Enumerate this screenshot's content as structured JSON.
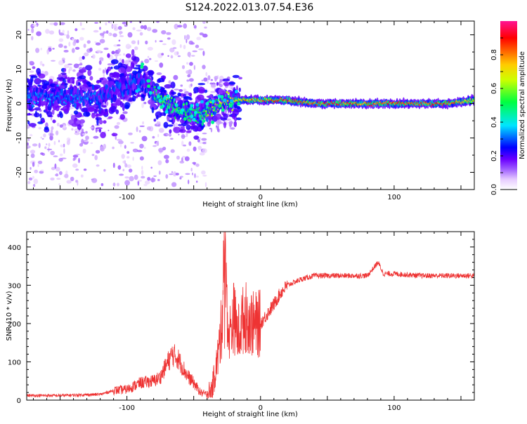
{
  "figure": {
    "title": "S124.2022.013.07.54.E36"
  },
  "chart_data": [
    {
      "type": "heatmap",
      "title": "S124.2022.013.07.54.E36",
      "xlabel": "Height of straight line (km)",
      "ylabel": "Frequency (Hz)",
      "xlim": [
        -175,
        160
      ],
      "ylim": [
        -25,
        24
      ],
      "xticks": [
        -100,
        0,
        100
      ],
      "yticks": [
        20,
        10,
        0,
        -10,
        -20
      ],
      "colorbar": {
        "label": "Normalized spectral amplitude",
        "range": [
          0.0,
          1.0
        ],
        "ticks": [
          0.0,
          0.2,
          0.4,
          0.6,
          0.8
        ],
        "colormap": [
          "#ffffff",
          "#d8b8f8",
          "#6a00ff",
          "#0000ff",
          "#00e5ff",
          "#00ff00",
          "#ffff00",
          "#ff8800",
          "#ff0000",
          "#ff1493"
        ]
      },
      "ridge": {
        "x": [
          -175,
          -150,
          -120,
          -100,
          -90,
          -80,
          -70,
          -60,
          -50,
          -40,
          -30,
          -20,
          -10,
          0,
          20,
          40,
          60,
          80,
          100,
          120,
          140,
          160
        ],
        "frequency": [
          2,
          2,
          2,
          5,
          7,
          3,
          0,
          -2,
          -3,
          -2,
          0,
          1,
          1,
          1,
          1,
          0,
          0,
          0,
          0,
          0,
          0,
          1
        ],
        "amplitude": [
          0.35,
          0.35,
          0.35,
          0.4,
          0.45,
          0.6,
          0.6,
          0.55,
          0.55,
          0.6,
          0.7,
          0.75,
          0.8,
          0.85,
          0.9,
          0.9,
          0.9,
          0.85,
          0.9,
          0.9,
          0.9,
          0.7
        ]
      }
    },
    {
      "type": "line",
      "xlabel": "Height of straight line (km)",
      "ylabel": "SNR (10 * v/v)",
      "xlim": [
        -175,
        160
      ],
      "ylim": [
        0,
        440
      ],
      "xticks": [
        -100,
        0,
        100
      ],
      "yticks": [
        0,
        100,
        200,
        300,
        400
      ],
      "color": "#ee3333",
      "series": [
        {
          "x": [
            -175,
            -150,
            -120,
            -110,
            -100,
            -90,
            -80,
            -75,
            -70,
            -66,
            -62,
            -58,
            -55,
            -50,
            -45,
            -40,
            -36,
            -32,
            -29,
            -27,
            -24,
            -20,
            -17,
            -14,
            -10,
            -5,
            0,
            5,
            10,
            15,
            20,
            30,
            40,
            60,
            80,
            88,
            92,
            95,
            100,
            120,
            140,
            160
          ],
          "y": [
            12,
            12,
            15,
            25,
            28,
            45,
            50,
            60,
            95,
            120,
            110,
            85,
            65,
            45,
            20,
            15,
            35,
            110,
            195,
            430,
            160,
            220,
            170,
            205,
            220,
            195,
            200,
            225,
            250,
            280,
            300,
            315,
            325,
            325,
            325,
            360,
            330,
            330,
            330,
            325,
            325,
            325
          ]
        }
      ]
    }
  ]
}
